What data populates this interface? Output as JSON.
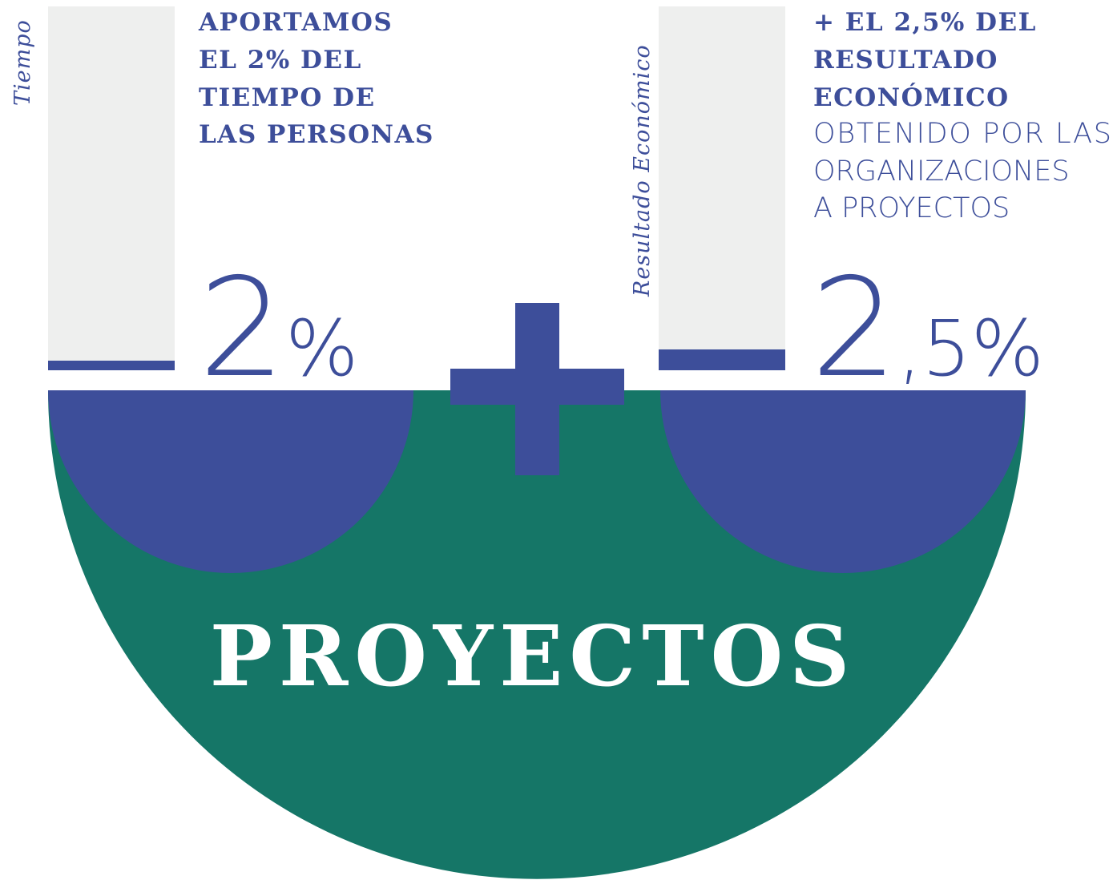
{
  "left": {
    "axis_label": "Tiempo",
    "heading": [
      "APORTAMOS",
      "EL 2% DEL",
      "TIEMPO DE",
      "LAS PERSONAS"
    ],
    "figure": {
      "number": "2",
      "unit": "%"
    }
  },
  "right": {
    "axis_label": "Resultado Económico",
    "heading": [
      "+ EL  2,5% DEL",
      "RESULTADO",
      "ECONÓMICO"
    ],
    "detail": [
      "OBTENIDO POR LAS",
      "ORGANIZACIONES",
      "A PROYECTOS"
    ],
    "figure": {
      "number": "2",
      "unit": ",5%"
    }
  },
  "center": {
    "label": "PROYECTOS"
  }
}
